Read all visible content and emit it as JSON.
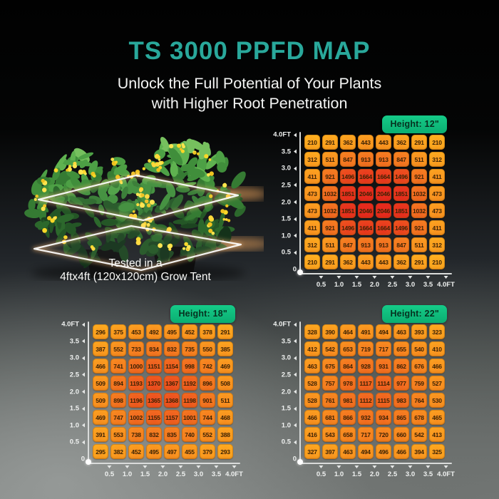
{
  "page": {
    "title": "TS 3000 PPFD MAP",
    "subtitle_line1": "Unlock the Full Potential of Your Plants",
    "subtitle_line2": "with Higher Root Penetration"
  },
  "plant_section": {
    "caption_line1": "Tested in a",
    "caption_line2": "4ftx4ft (120x120cm) Grow Tent"
  },
  "colors": {
    "title_teal": "#29A89B",
    "badge_green": "#0FBF7E",
    "badge_text": "#06301F",
    "cell_text": "#3B2404",
    "axis_text": "#EFF1F0",
    "heat_low": "#FFB41F",
    "heat_mid": "#F47821",
    "heat_high": "#E62A1D"
  },
  "axes": {
    "y_labels": [
      "4.0FT",
      "3.5",
      "3.0",
      "2.5",
      "2.0",
      "1.5",
      "1.0",
      "0.5",
      "0"
    ],
    "x_labels": [
      "0.5",
      "1.0",
      "1.5",
      "2.0",
      "2.5",
      "3.0",
      "3.5",
      "4.0FT"
    ]
  },
  "chart_data": [
    {
      "type": "heatmap",
      "title": "Height: 12\"",
      "x_labels": [
        "0.5",
        "1.0",
        "1.5",
        "2.0",
        "2.5",
        "3.0",
        "3.5",
        "4.0FT"
      ],
      "y_labels": [
        "4.0FT",
        "3.5",
        "3.0",
        "2.5",
        "2.0",
        "1.5",
        "1.0",
        "0.5",
        "0"
      ],
      "values": [
        [
          210,
          291,
          362,
          443,
          443,
          362,
          291,
          210
        ],
        [
          312,
          511,
          847,
          913,
          913,
          847,
          511,
          312
        ],
        [
          411,
          921,
          1496,
          1664,
          1664,
          1496,
          921,
          411
        ],
        [
          473,
          1032,
          1851,
          2046,
          2046,
          1851,
          1032,
          473
        ],
        [
          473,
          1032,
          1851,
          2046,
          2046,
          1851,
          1032,
          473
        ],
        [
          411,
          921,
          1496,
          1664,
          1664,
          1496,
          921,
          411
        ],
        [
          312,
          511,
          847,
          913,
          913,
          847,
          511,
          312
        ],
        [
          210,
          291,
          362,
          443,
          443,
          362,
          291,
          210
        ]
      ]
    },
    {
      "type": "heatmap",
      "title": "Height: 18\"",
      "x_labels": [
        "0.5",
        "1.0",
        "1.5",
        "2.0",
        "2.5",
        "3.0",
        "3.5",
        "4.0FT"
      ],
      "y_labels": [
        "4.0FT",
        "3.5",
        "3.0",
        "2.5",
        "2.0",
        "1.5",
        "1.0",
        "0.5",
        "0"
      ],
      "values": [
        [
          296,
          375,
          453,
          492,
          495,
          452,
          378,
          291
        ],
        [
          387,
          552,
          733,
          834,
          832,
          735,
          550,
          385
        ],
        [
          466,
          741,
          1000,
          1151,
          1154,
          998,
          742,
          469
        ],
        [
          509,
          894,
          1193,
          1370,
          1367,
          1192,
          896,
          508
        ],
        [
          509,
          898,
          1196,
          1365,
          1368,
          1198,
          901,
          511
        ],
        [
          469,
          747,
          1002,
          1155,
          1157,
          1001,
          744,
          468
        ],
        [
          391,
          553,
          738,
          832,
          835,
          740,
          552,
          388
        ],
        [
          295,
          382,
          452,
          495,
          497,
          455,
          379,
          293
        ]
      ]
    },
    {
      "type": "heatmap",
      "title": "Height: 22\"",
      "x_labels": [
        "0.5",
        "1.0",
        "1.5",
        "2.0",
        "2.5",
        "3.0",
        "3.5",
        "4.0FT"
      ],
      "y_labels": [
        "4.0FT",
        "3.5",
        "3.0",
        "2.5",
        "2.0",
        "1.5",
        "1.0",
        "0.5",
        "0"
      ],
      "values": [
        [
          328,
          390,
          464,
          491,
          494,
          463,
          393,
          323
        ],
        [
          412,
          542,
          653,
          719,
          717,
          655,
          540,
          410
        ],
        [
          463,
          675,
          864,
          928,
          931,
          862,
          676,
          466
        ],
        [
          528,
          757,
          978,
          1117,
          1114,
          977,
          759,
          527
        ],
        [
          528,
          761,
          981,
          1112,
          1115,
          983,
          764,
          530
        ],
        [
          466,
          681,
          866,
          932,
          934,
          865,
          678,
          465
        ],
        [
          416,
          543,
          658,
          717,
          720,
          660,
          542,
          413
        ],
        [
          327,
          397,
          463,
          494,
          496,
          466,
          394,
          325
        ]
      ]
    }
  ]
}
